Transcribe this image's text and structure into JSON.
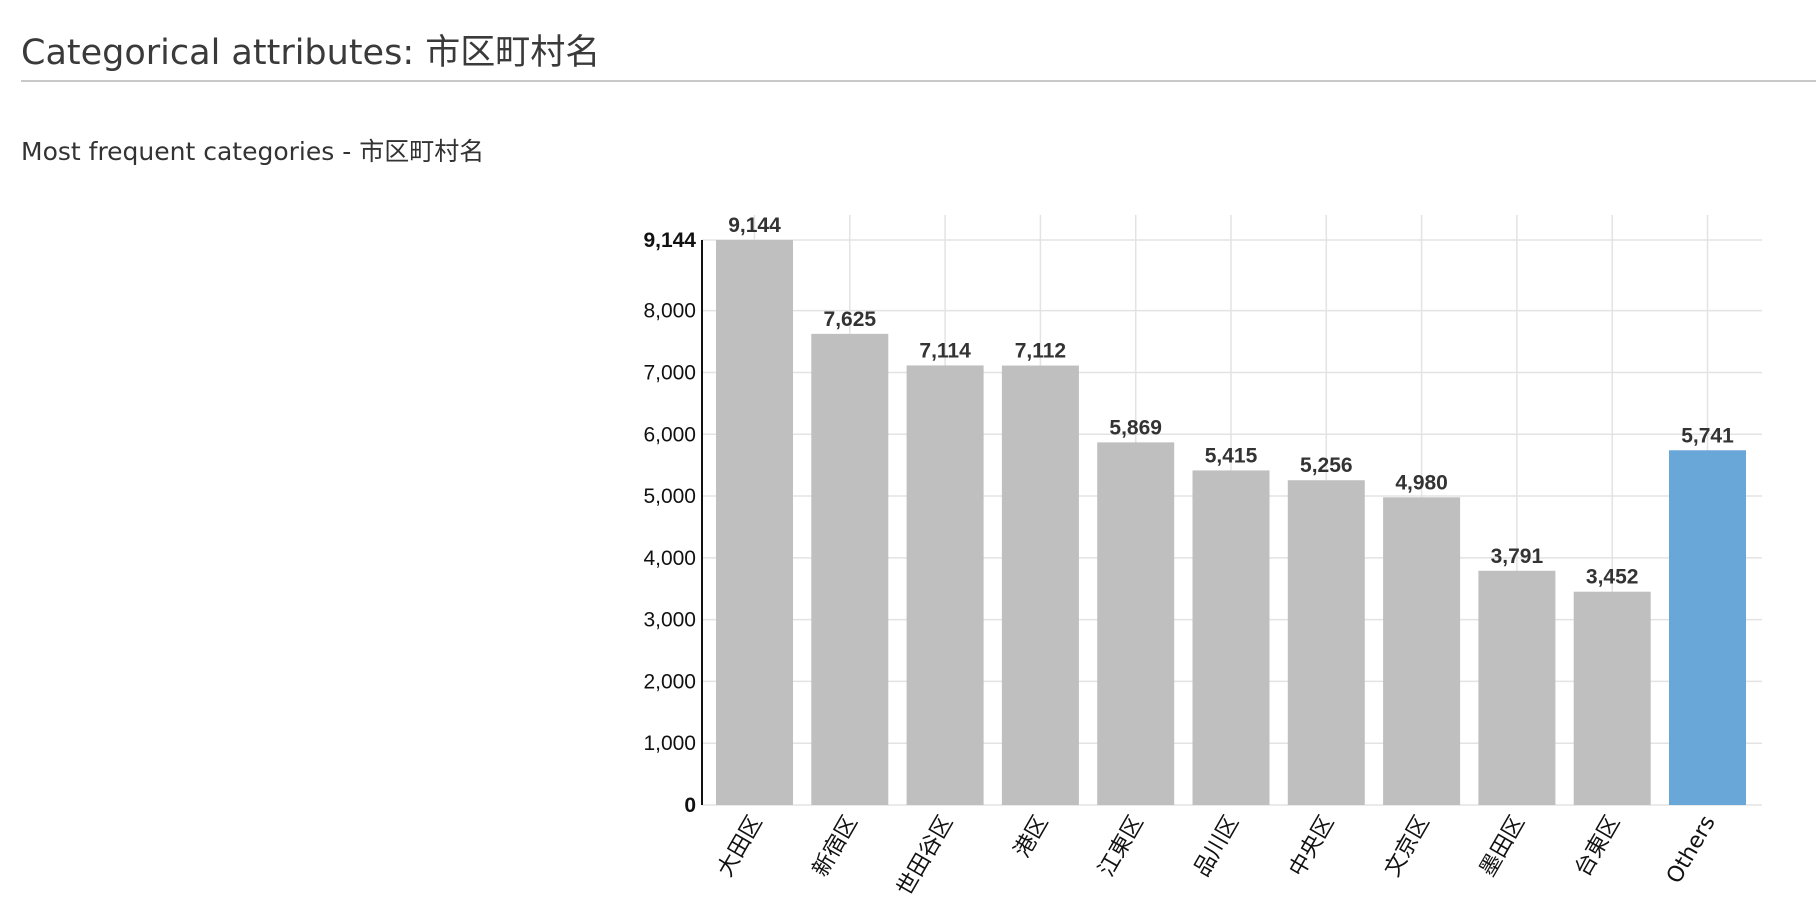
{
  "header": {
    "title": "Categorical attributes: 市区町村名"
  },
  "section": {
    "subtitle": "Most frequent categories - 市区町村名"
  },
  "chart_data": {
    "type": "bar",
    "categories": [
      "大田区",
      "新宿区",
      "世田谷区",
      "港区",
      "江東区",
      "品川区",
      "中央区",
      "文京区",
      "墨田区",
      "台東区",
      "Others"
    ],
    "values": [
      9144,
      7625,
      7114,
      7112,
      5869,
      5415,
      5256,
      4980,
      3791,
      3452,
      5741
    ],
    "value_labels": [
      "9,144",
      "7,625",
      "7,114",
      "7,112",
      "5,869",
      "5,415",
      "5,256",
      "4,980",
      "3,791",
      "3,452",
      "5,741"
    ],
    "ylim": [
      0,
      9144
    ],
    "y_ticks": [
      0,
      1000,
      2000,
      3000,
      4000,
      5000,
      6000,
      7000,
      8000,
      9144
    ],
    "y_tick_labels": [
      "0",
      "1,000",
      "2,000",
      "3,000",
      "4,000",
      "5,000",
      "6,000",
      "7,000",
      "8,000",
      "9,144"
    ],
    "bar_color": "#bfbfbf",
    "highlight_color": "#69a7d8",
    "highlight_category": "Others",
    "grid": true,
    "legend": "none"
  }
}
